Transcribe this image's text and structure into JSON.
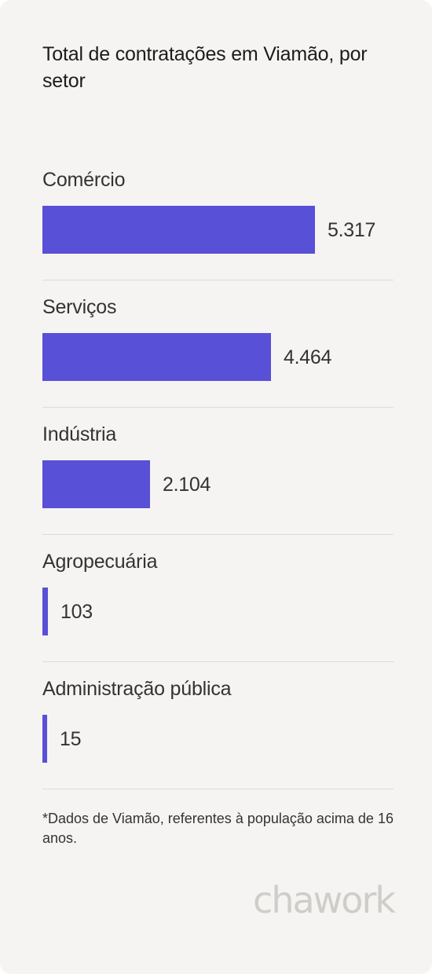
{
  "title": "Total de contratações em Viamão, por setor",
  "footnote": "*Dados de Viamão, referentes à população acima de 16 anos.",
  "logo_text": "chawork",
  "colors": {
    "bar": "#5850d6",
    "background": "#f5f4f2",
    "divider": "#dddbd8"
  },
  "chart_data": {
    "type": "bar",
    "orientation": "horizontal",
    "title": "Total de contratações em Viamão, por setor",
    "categories": [
      "Comércio",
      "Serviços",
      "Indústria",
      "Agropecuária",
      "Administração pública"
    ],
    "values": [
      5317,
      4464,
      2104,
      103,
      15
    ],
    "value_labels": [
      "5.317",
      "4.464",
      "2.104",
      "103",
      "15"
    ],
    "xlim": [
      0,
      6850
    ],
    "grid": false
  }
}
